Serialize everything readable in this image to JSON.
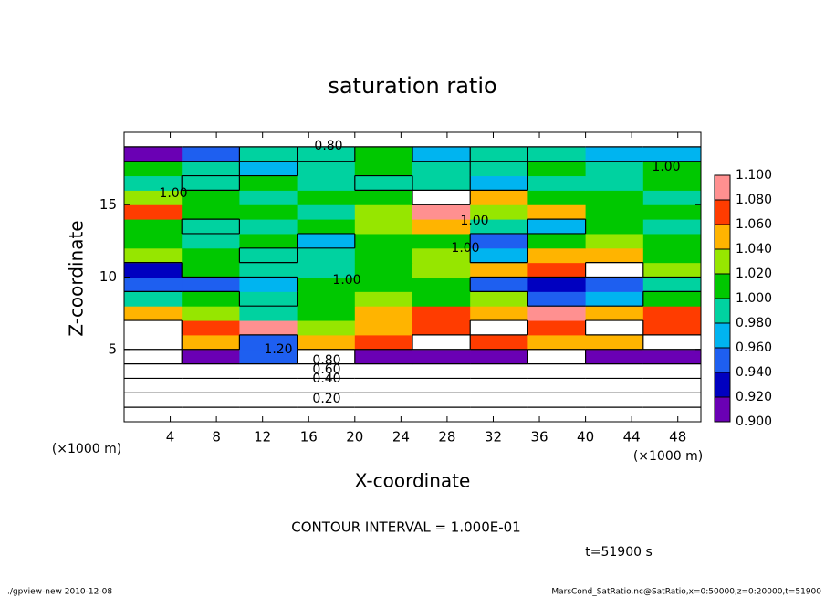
{
  "chart_data": {
    "type": "heatmap",
    "title": "saturation ratio",
    "x_label": "X-coordinate",
    "y_label": "Z-coordinate",
    "x_unit": "(×1000 m)",
    "y_unit": "(×1000 m)",
    "xlim": [
      0,
      50
    ],
    "ylim": [
      0,
      20
    ],
    "xticks": [
      4,
      8,
      12,
      16,
      20,
      24,
      28,
      32,
      36,
      40,
      44,
      48
    ],
    "yticks": [
      5,
      10,
      15
    ],
    "x_edges": [
      0,
      5,
      10,
      15,
      20,
      25,
      30,
      35,
      40,
      45,
      50
    ],
    "z_edges": [
      0,
      1,
      2,
      3,
      4,
      5,
      6,
      7,
      8,
      9,
      10,
      11,
      12,
      13,
      14,
      15,
      16,
      17,
      18,
      19,
      20
    ],
    "values": [
      [
        0.12,
        0.12,
        0.12,
        0.12,
        0.12,
        0.12,
        0.12,
        0.12,
        0.12,
        0.12
      ],
      [
        0.25,
        0.25,
        0.25,
        0.25,
        0.25,
        0.25,
        0.25,
        0.25,
        0.25,
        0.25
      ],
      [
        0.38,
        0.38,
        0.38,
        0.38,
        0.38,
        0.38,
        0.38,
        0.38,
        0.38,
        0.38
      ],
      [
        0.55,
        0.55,
        0.55,
        0.55,
        0.55,
        0.55,
        0.55,
        0.55,
        0.55,
        0.55
      ],
      [
        0.85,
        0.9,
        0.95,
        0.88,
        0.9,
        0.92,
        0.9,
        0.88,
        0.9,
        0.92
      ],
      [
        1.12,
        1.06,
        0.95,
        1.05,
        1.08,
        1.12,
        1.07,
        1.05,
        1.06,
        1.12
      ],
      [
        1.12,
        1.07,
        1.09,
        1.04,
        1.06,
        1.07,
        1.12,
        1.08,
        1.12,
        1.07
      ],
      [
        1.05,
        1.03,
        1.0,
        1.02,
        1.06,
        1.08,
        1.06,
        1.09,
        1.06,
        1.07
      ],
      [
        1.0,
        1.01,
        0.99,
        1.01,
        1.03,
        1.02,
        1.04,
        0.96,
        0.97,
        1.02
      ],
      [
        0.95,
        0.96,
        0.98,
        1.01,
        1.01,
        1.02,
        0.95,
        0.94,
        0.96,
        0.99
      ],
      [
        0.94,
        1.01,
        1.0,
        1.0,
        1.02,
        1.03,
        1.05,
        1.07,
        1.12,
        1.04
      ],
      [
        1.04,
        1.01,
        0.99,
        1.0,
        1.01,
        1.04,
        0.97,
        1.06,
        1.05,
        1.02
      ],
      [
        1.01,
        1.0,
        1.01,
        0.97,
        1.02,
        1.01,
        0.96,
        1.02,
        1.03,
        1.01
      ],
      [
        1.02,
        0.99,
        1.0,
        1.01,
        1.03,
        1.06,
        1.0,
        0.97,
        1.01,
        1.0
      ],
      [
        1.07,
        1.02,
        1.01,
        1.0,
        1.04,
        1.09,
        1.03,
        1.06,
        1.02,
        1.01
      ],
      [
        1.03,
        1.01,
        1.0,
        1.02,
        1.01,
        1.12,
        1.05,
        1.02,
        1.01,
        1.0
      ],
      [
        1.0,
        0.99,
        1.01,
        1.0,
        0.99,
        1.0,
        0.97,
        1.0,
        1.0,
        1.01
      ],
      [
        1.01,
        1.0,
        0.98,
        1.0,
        1.02,
        1.0,
        0.99,
        1.01,
        1.0,
        1.02
      ],
      [
        0.9,
        0.95,
        1.0,
        0.99,
        1.01,
        0.98,
        1.0,
        0.99,
        0.98,
        0.97
      ],
      [
        0.6,
        0.6,
        0.6,
        0.6,
        0.6,
        0.6,
        0.6,
        0.6,
        0.6,
        0.6
      ]
    ],
    "colorbar_ticks": [
      {
        "value": 0.9,
        "label": "0.900"
      },
      {
        "value": 0.92,
        "label": "0.920"
      },
      {
        "value": 0.94,
        "label": "0.940"
      },
      {
        "value": 0.96,
        "label": "0.960"
      },
      {
        "value": 0.98,
        "label": "0.980"
      },
      {
        "value": 1.0,
        "label": "1.000"
      },
      {
        "value": 1.02,
        "label": "1.020"
      },
      {
        "value": 1.04,
        "label": "1.040"
      },
      {
        "value": 1.06,
        "label": "1.060"
      },
      {
        "value": 1.08,
        "label": "1.080"
      },
      {
        "value": 1.1,
        "label": "1.100"
      }
    ],
    "colors": [
      "#6a00b4",
      "#0000c0",
      "#1e5ff0",
      "#00b4f0",
      "#00d2a0",
      "#00c800",
      "#96e600",
      "#ffb400",
      "#ff3c00",
      "#ff9090"
    ],
    "contour_interval": 0.1,
    "contour_labels": [
      "0.80",
      "1.00",
      "1.00",
      "1.00",
      "1.00",
      "1.00",
      "1.20",
      "0.80",
      "0.60",
      "0.40",
      "0.20"
    ],
    "contour_interval_label": "CONTOUR INTERVAL = 1.000E-01",
    "time_label": "t=51900 s"
  },
  "footer": {
    "left": "./gpview-new   2010-12-08",
    "right": "MarsCond_SatRatio.nc@SatRatio,x=0:50000,z=0:20000,t=51900"
  }
}
